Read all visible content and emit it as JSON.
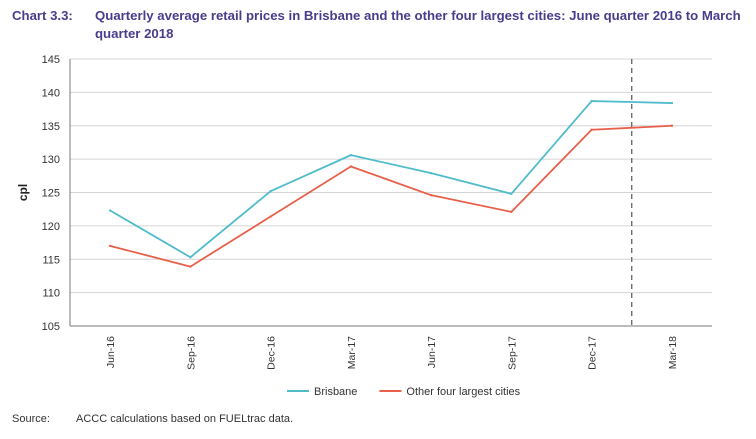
{
  "title": {
    "label": "Chart 3.3:",
    "text": "Quarterly average retail prices in Brisbane and the other four largest cities: June quarter 2016 to March quarter 2018"
  },
  "source": {
    "label": "Source:",
    "text": "ACCC calculations based on FUELtrac data."
  },
  "colors": {
    "brisbane": "#4fbccb",
    "other": "#e8604c",
    "axis": "#7a7a7a",
    "grid": "#d4d4d4",
    "title": "#4a3c8c"
  },
  "chart_data": {
    "type": "line",
    "title": "Quarterly average retail prices in Brisbane and the other four largest cities: June quarter 2016 to March quarter 2018",
    "xlabel": "",
    "ylabel": "cpl",
    "categories": [
      "Jun-16",
      "Sep-16",
      "Dec-16",
      "Mar-17",
      "Jun-17",
      "Sep-17",
      "Dec-17",
      "Mar-18"
    ],
    "ylim": [
      105,
      145
    ],
    "yticks": [
      105,
      110,
      115,
      120,
      125,
      130,
      135,
      140,
      145
    ],
    "grid": true,
    "legend": "bottom",
    "series": [
      {
        "name": "Brisbane",
        "values": [
          122.3,
          115.3,
          125.2,
          130.6,
          127.9,
          124.8,
          138.7,
          138.4
        ]
      },
      {
        "name": "Other four largest cities",
        "values": [
          117.0,
          113.9,
          121.4,
          128.9,
          124.6,
          122.1,
          134.4,
          135.0
        ]
      }
    ],
    "annotations": [
      {
        "type": "vertical-dashed-line",
        "between": [
          "Dec-17",
          "Mar-18"
        ],
        "position": 0.5
      }
    ]
  }
}
